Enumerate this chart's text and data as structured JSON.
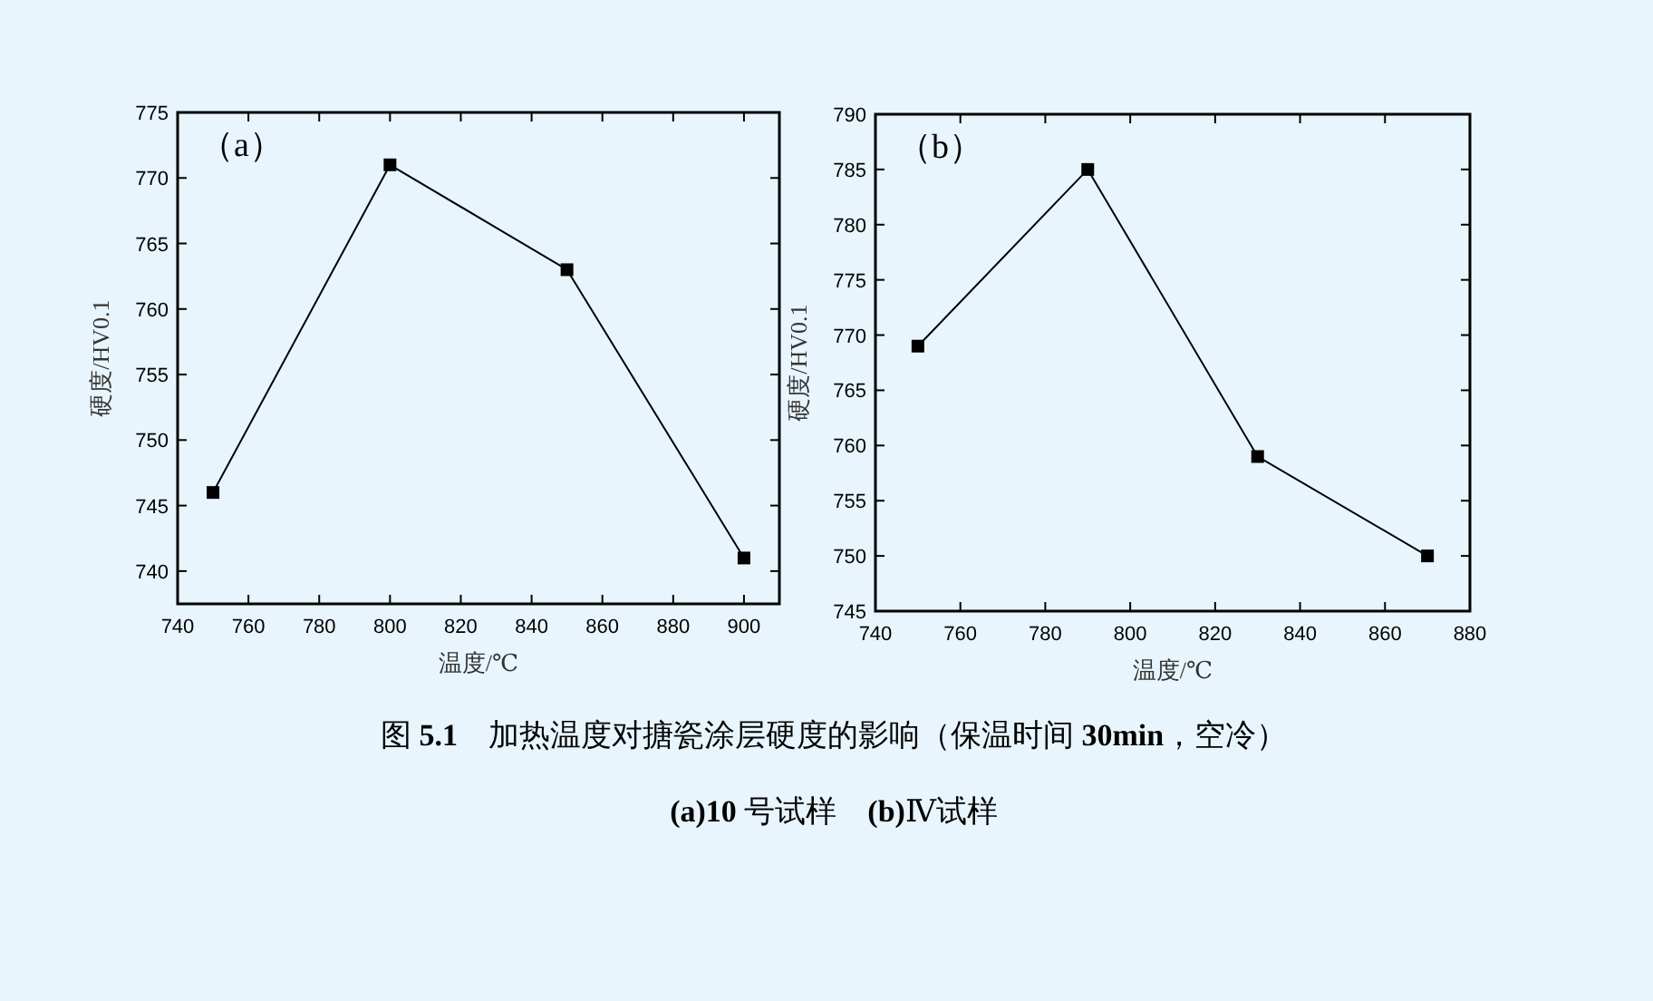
{
  "chart_data": [
    {
      "type": "line",
      "xlabel": "温度/℃",
      "ylabel": "硬度/HV0.1",
      "annotations": [
        "（a）"
      ],
      "x": [
        750,
        800,
        850,
        900
      ],
      "series": [
        {
          "color": "#000000",
          "values": [
            746,
            771,
            763,
            741
          ]
        }
      ],
      "xlim": [
        740,
        910
      ],
      "ylim": [
        737.5,
        775
      ],
      "xticks": [
        740,
        760,
        780,
        800,
        820,
        840,
        860,
        880,
        900
      ],
      "yticks": [
        740,
        745,
        750,
        755,
        760,
        765,
        770,
        775
      ],
      "marker": "square",
      "line_style": "solid"
    },
    {
      "type": "line",
      "xlabel": "温度/℃",
      "ylabel": "硬度/HV0.1",
      "annotations": [
        "（b）"
      ],
      "x": [
        750,
        790,
        830,
        870
      ],
      "series": [
        {
          "color": "#000000",
          "values": [
            769,
            785,
            759,
            750
          ]
        }
      ],
      "xlim": [
        740,
        880
      ],
      "ylim": [
        745,
        790
      ],
      "xticks": [
        740,
        760,
        780,
        800,
        820,
        840,
        860,
        880
      ],
      "yticks": [
        745,
        750,
        755,
        760,
        765,
        770,
        775,
        780,
        785,
        790
      ],
      "marker": "square",
      "line_style": "solid"
    },
    {
      "type": "other",
      "annotations": [
        "图 **5.1**　加热温度对搪瓷涂层硬度的影响（保温时间 **30min**，空冷）",
        "**(a)10** 号试样　**(b)**Ⅳ试样"
      ]
    }
  ]
}
